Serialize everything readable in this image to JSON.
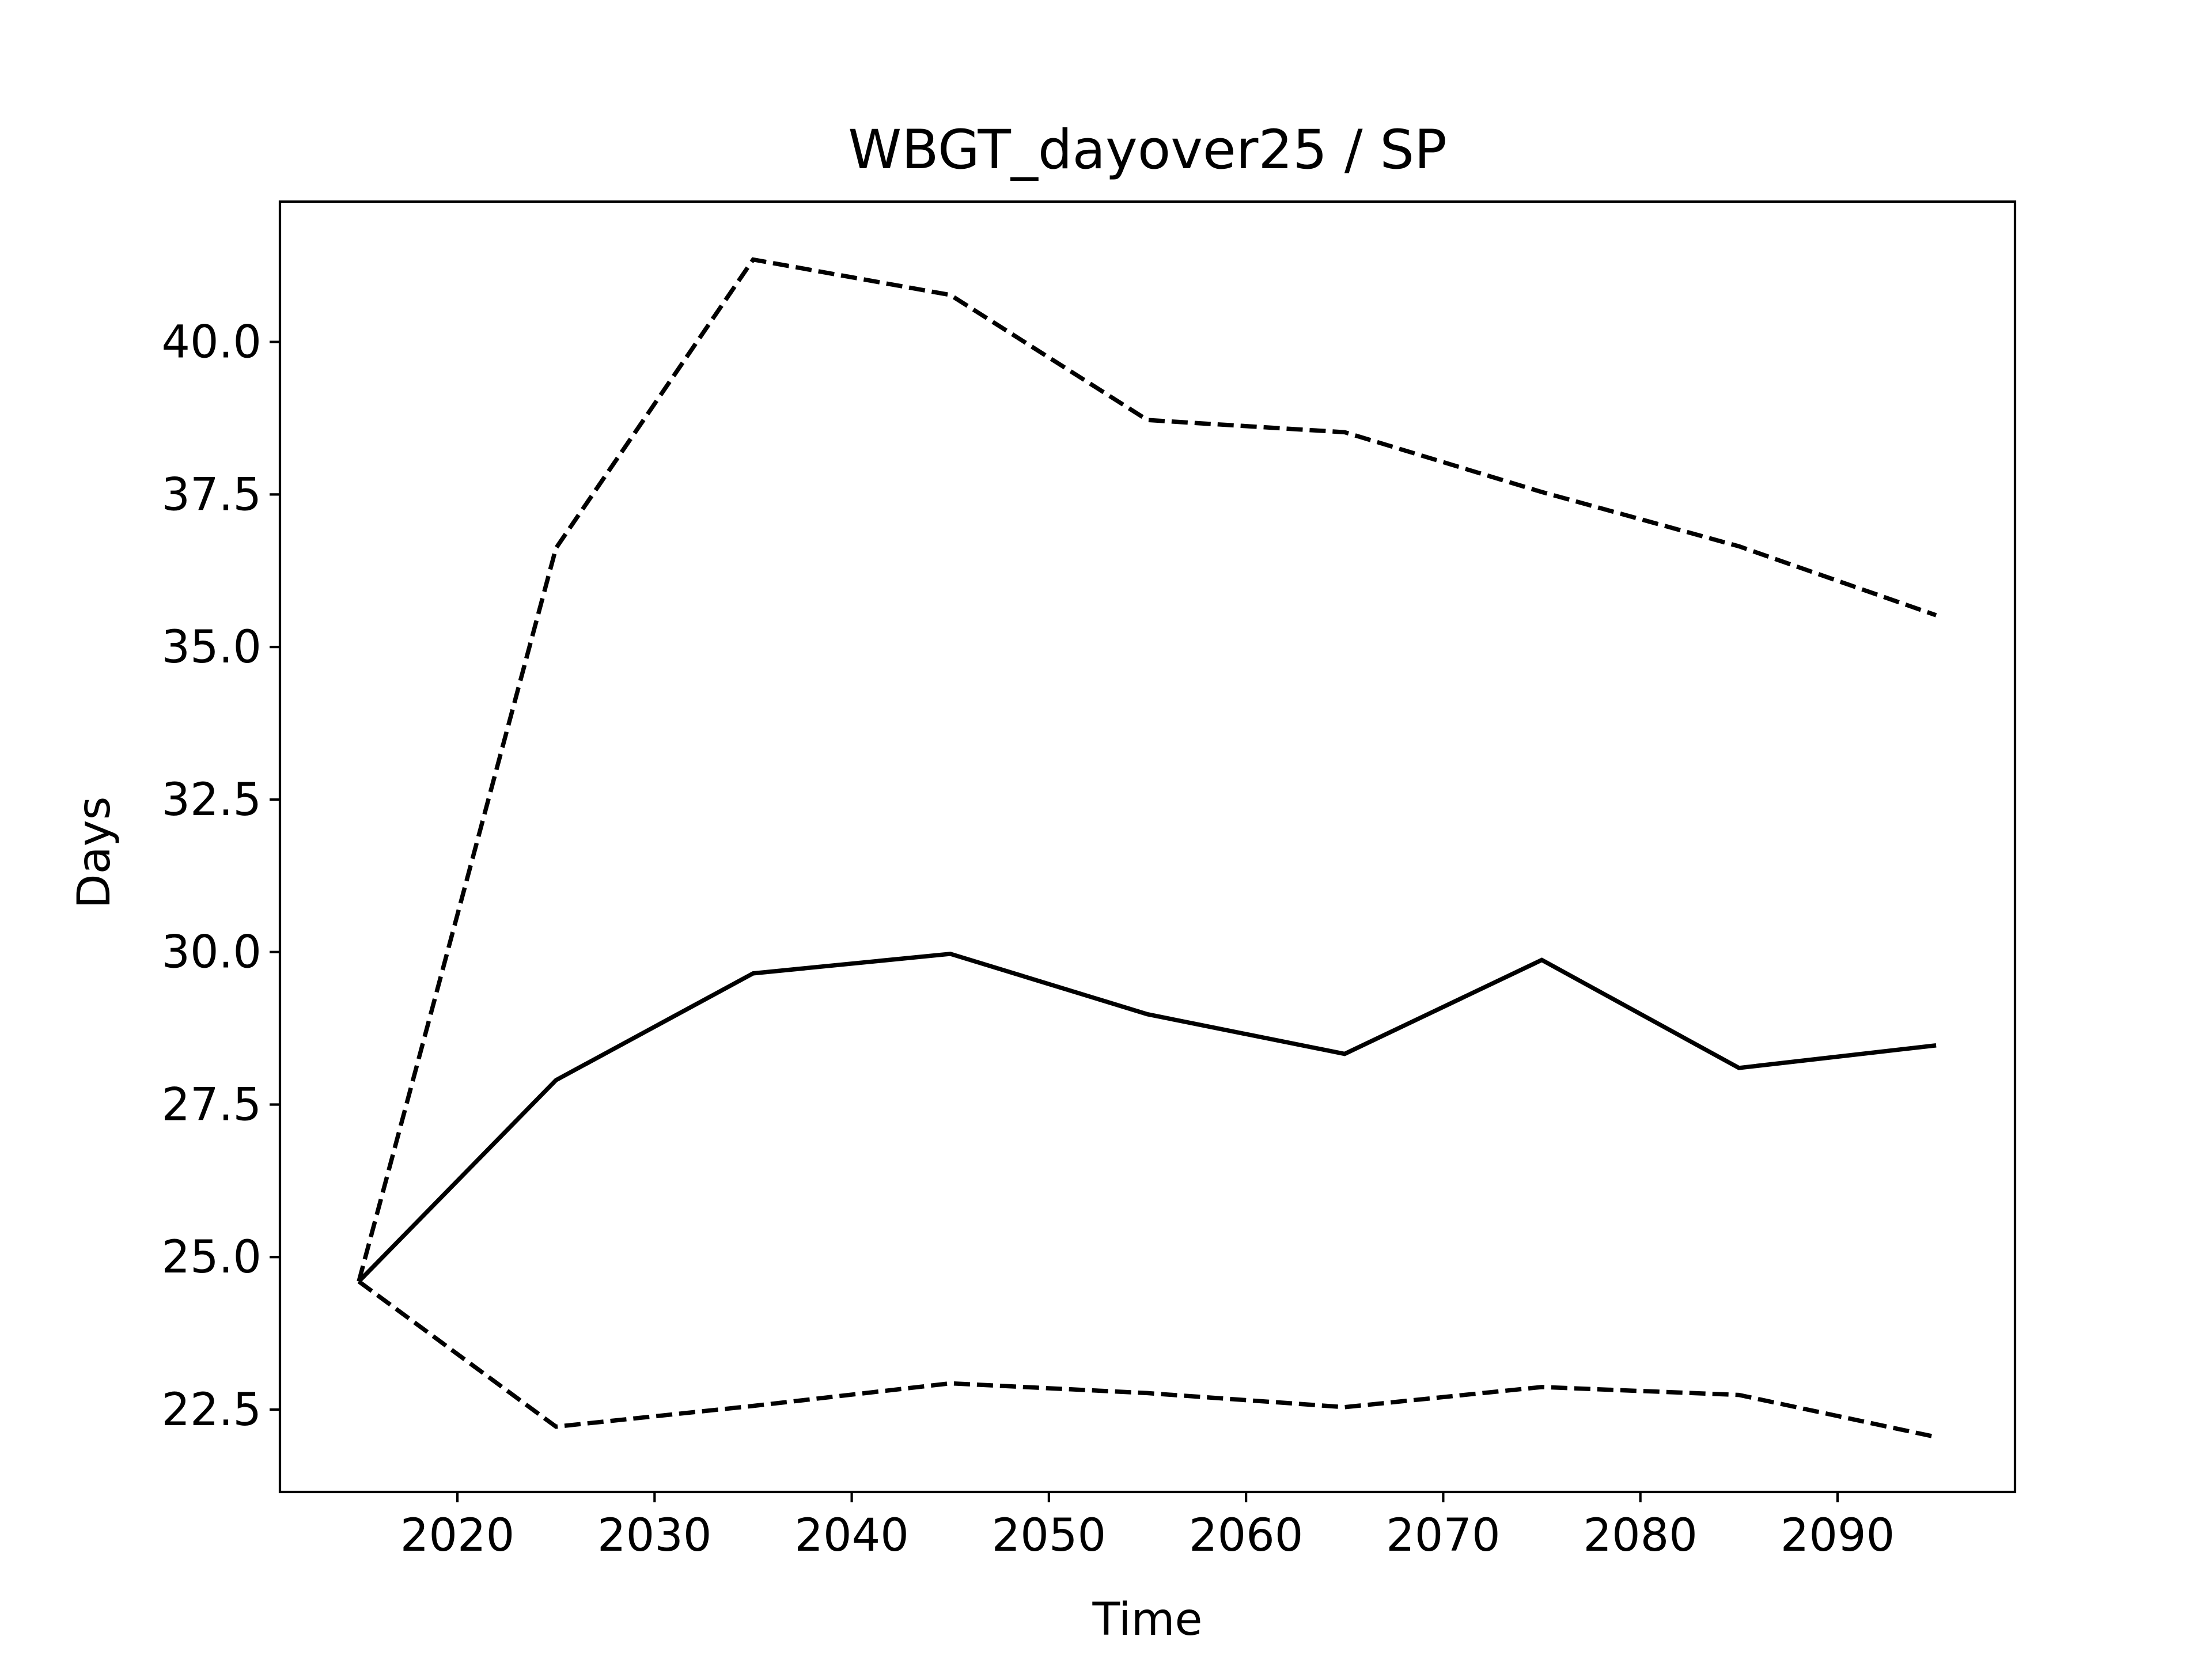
{
  "chart_data": {
    "type": "line",
    "title": "WBGT_dayover25 / SP",
    "xlabel": "Time",
    "ylabel": "Days",
    "xlim": [
      2011,
      2099
    ],
    "ylim": [
      21.15,
      42.3
    ],
    "x_ticks": [
      2020,
      2030,
      2040,
      2050,
      2060,
      2070,
      2080,
      2090
    ],
    "y_ticks": [
      22.5,
      25.0,
      27.5,
      30.0,
      32.5,
      35.0,
      37.5,
      40.0
    ],
    "x_tick_labels": [
      "2020",
      "2030",
      "2040",
      "2050",
      "2060",
      "2070",
      "2080",
      "2090"
    ],
    "y_tick_labels": [
      "22.5",
      "25.0",
      "27.5",
      "30.0",
      "32.5",
      "35.0",
      "37.5",
      "40.0"
    ],
    "grid": false,
    "x": [
      2015,
      2025,
      2035,
      2045,
      2055,
      2065,
      2075,
      2085,
      2095
    ],
    "series": [
      {
        "values": [
          24.6,
          27.9,
          29.65,
          29.97,
          28.98,
          28.33,
          29.87,
          28.1,
          28.47
        ],
        "style": "solid",
        "color": "#000000"
      },
      {
        "values": [
          24.6,
          36.62,
          41.35,
          40.77,
          38.72,
          38.52,
          37.54,
          36.65,
          35.52
        ],
        "style": "dashed",
        "color": "#000000"
      },
      {
        "values": [
          24.6,
          22.22,
          22.56,
          22.93,
          22.77,
          22.54,
          22.87,
          22.74,
          22.05
        ],
        "style": "dashed",
        "color": "#000000"
      }
    ]
  }
}
